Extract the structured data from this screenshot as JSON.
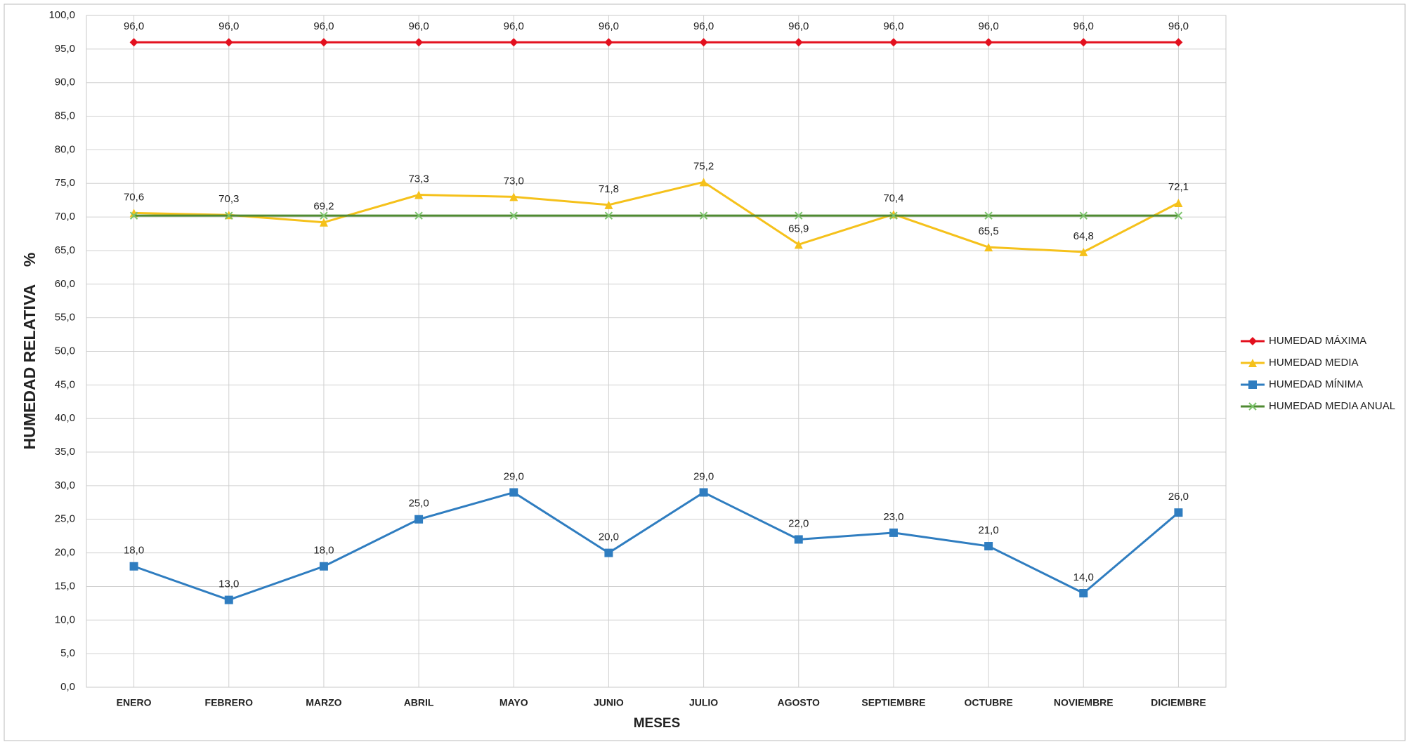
{
  "chart_data": {
    "type": "line",
    "x_label": "MESES",
    "y_label": "HUMEDAD RELATIVA    %",
    "categories": [
      "ENERO",
      "FEBRERO",
      "MARZO",
      "ABRIL",
      "MAYO",
      "JUNIO",
      "JULIO",
      "AGOSTO",
      "SEPTIEMBRE",
      "OCTUBRE",
      "NOVIEMBRE",
      "DICIEMBRE"
    ],
    "ylim": [
      0,
      100
    ],
    "yticks": [
      {
        "value": 0,
        "label": "0,0"
      },
      {
        "value": 5,
        "label": "5,0"
      },
      {
        "value": 10,
        "label": "10,0"
      },
      {
        "value": 15,
        "label": "15,0"
      },
      {
        "value": 20,
        "label": "20,0"
      },
      {
        "value": 25,
        "label": "25,0"
      },
      {
        "value": 30,
        "label": "30,0"
      },
      {
        "value": 35,
        "label": "35,0"
      },
      {
        "value": 40,
        "label": "40,0"
      },
      {
        "value": 45,
        "label": "45,0"
      },
      {
        "value": 50,
        "label": "50,0"
      },
      {
        "value": 55,
        "label": "55,0"
      },
      {
        "value": 60,
        "label": "60,0"
      },
      {
        "value": 65,
        "label": "65,0"
      },
      {
        "value": 70,
        "label": "70,0"
      },
      {
        "value": 75,
        "label": "75,0"
      },
      {
        "value": 80,
        "label": "80,0"
      },
      {
        "value": 85,
        "label": "85,0"
      },
      {
        "value": 90,
        "label": "90,0"
      },
      {
        "value": 95,
        "label": "95,0"
      },
      {
        "value": 100,
        "label": "100,0"
      }
    ],
    "grid": true,
    "legend": "right",
    "series": [
      {
        "name": "HUMEDAD MÁXIMA",
        "color": "#e3101e",
        "marker": "diamond",
        "values": [
          96,
          96,
          96,
          96,
          96,
          96,
          96,
          96,
          96,
          96,
          96,
          96
        ],
        "value_labels": [
          "96,0",
          "96,0",
          "96,0",
          "96,0",
          "96,0",
          "96,0",
          "96,0",
          "96,0",
          "96,0",
          "96,0",
          "96,0",
          "96,0"
        ]
      },
      {
        "name": "HUMEDAD MEDIA",
        "color": "#f5c11b",
        "marker": "triangle",
        "values": [
          70.6,
          70.3,
          69.2,
          73.3,
          73.0,
          71.8,
          75.2,
          65.9,
          70.4,
          65.5,
          64.8,
          72.1
        ],
        "value_labels": [
          "70,6",
          "70,3",
          "69,2",
          "73,3",
          "73,0",
          "71,8",
          "75,2",
          "65,9",
          "70,4",
          "65,5",
          "64,8",
          "72,1"
        ]
      },
      {
        "name": "HUMEDAD MÍNIMA",
        "color": "#2f7dc0",
        "marker": "square",
        "values": [
          18,
          13,
          18,
          25,
          29,
          20,
          29,
          22,
          23,
          21,
          14,
          26
        ],
        "value_labels": [
          "18,0",
          "13,0",
          "18,0",
          "25,0",
          "29,0",
          "20,0",
          "29,0",
          "22,0",
          "23,0",
          "21,0",
          "14,0",
          "26,0"
        ]
      },
      {
        "name": "HUMEDAD MEDIA ANUAL",
        "color": "#4f8a32",
        "marker": "x",
        "values": [
          70.2,
          70.2,
          70.2,
          70.2,
          70.2,
          70.2,
          70.2,
          70.2,
          70.2,
          70.2,
          70.2,
          70.2
        ]
      }
    ]
  }
}
